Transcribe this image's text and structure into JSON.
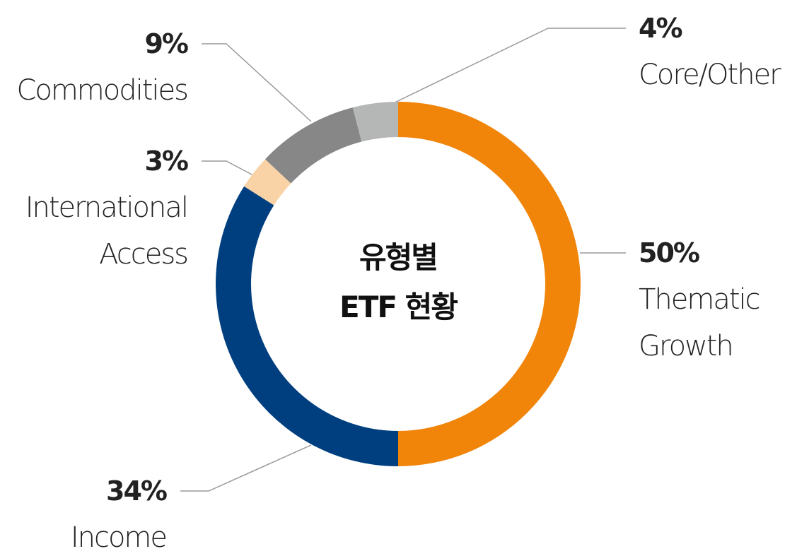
{
  "chart_data": {
    "type": "donut",
    "title": "유형별\nETF 현황",
    "categories": [
      "Thematic Growth",
      "Income",
      "International Access",
      "Commodities",
      "Core/Other"
    ],
    "values": [
      50,
      34,
      3,
      9,
      4
    ],
    "value_labels": [
      "50%",
      "34%",
      "3%",
      "9%",
      "4%"
    ],
    "colors": [
      "#f0850a",
      "#003f7f",
      "#f9d3a6",
      "#878787",
      "#b5b7b6"
    ]
  }
}
